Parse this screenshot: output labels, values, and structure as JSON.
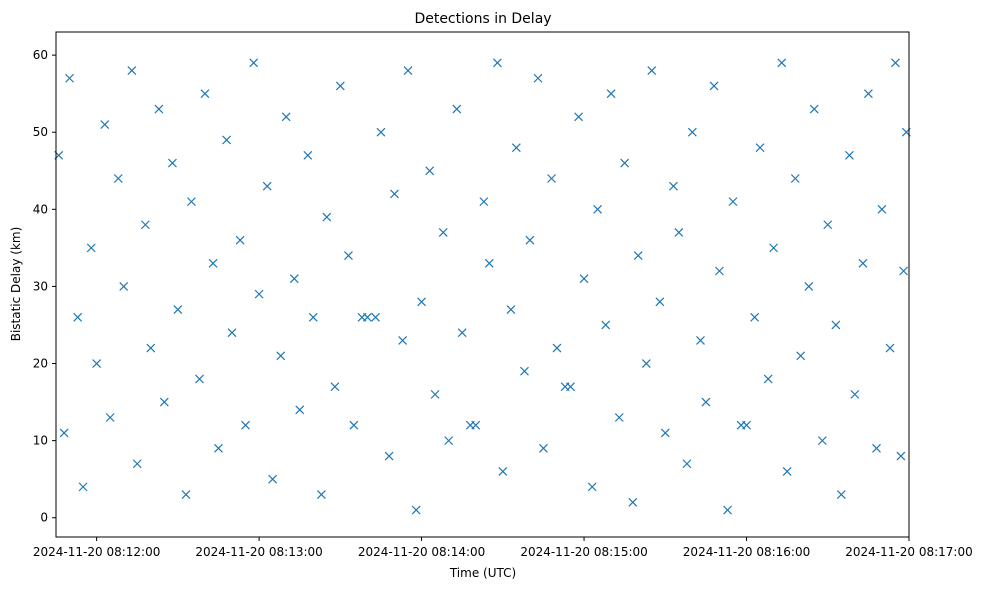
{
  "chart_data": {
    "type": "scatter",
    "title": "Detections in Delay",
    "xlabel": "Time (UTC)",
    "ylabel": "Bistatic Delay (km)",
    "marker": "x",
    "color": "#1f77b4",
    "grid": false,
    "legend": "none",
    "x_ticks": [
      "2024-11-20 08:12:00",
      "2024-11-20 08:13:00",
      "2024-11-20 08:14:00",
      "2024-11-20 08:15:00",
      "2024-11-20 08:16:00",
      "2024-11-20 08:17:00"
    ],
    "y_ticks": [
      0,
      10,
      20,
      30,
      40,
      50,
      60
    ],
    "xlim": [
      "2024-11-20 08:11:45",
      "2024-11-20 08:17:00"
    ],
    "ylim": [
      -2.5,
      63
    ],
    "points": [
      [
        "2024-11-20 08:11:46",
        47.0
      ],
      [
        "2024-11-20 08:11:48",
        11.0
      ],
      [
        "2024-11-20 08:11:50",
        57.0
      ],
      [
        "2024-11-20 08:11:53",
        26.0
      ],
      [
        "2024-11-20 08:11:55",
        4.0
      ],
      [
        "2024-11-20 08:11:58",
        35.0
      ],
      [
        "2024-11-20 08:12:00",
        20.0
      ],
      [
        "2024-11-20 08:12:03",
        51.0
      ],
      [
        "2024-11-20 08:12:05",
        13.0
      ],
      [
        "2024-11-20 08:12:08",
        44.0
      ],
      [
        "2024-11-20 08:12:10",
        30.0
      ],
      [
        "2024-11-20 08:12:13",
        58.0
      ],
      [
        "2024-11-20 08:12:15",
        7.0
      ],
      [
        "2024-11-20 08:12:18",
        38.0
      ],
      [
        "2024-11-20 08:12:20",
        22.0
      ],
      [
        "2024-11-20 08:12:23",
        53.0
      ],
      [
        "2024-11-20 08:12:25",
        15.0
      ],
      [
        "2024-11-20 08:12:28",
        46.0
      ],
      [
        "2024-11-20 08:12:30",
        27.0
      ],
      [
        "2024-11-20 08:12:33",
        3.0
      ],
      [
        "2024-11-20 08:12:35",
        41.0
      ],
      [
        "2024-11-20 08:12:38",
        18.0
      ],
      [
        "2024-11-20 08:12:40",
        55.0
      ],
      [
        "2024-11-20 08:12:43",
        33.0
      ],
      [
        "2024-11-20 08:12:45",
        9.0
      ],
      [
        "2024-11-20 08:12:48",
        49.0
      ],
      [
        "2024-11-20 08:12:50",
        24.0
      ],
      [
        "2024-11-20 08:12:53",
        36.0
      ],
      [
        "2024-11-20 08:12:55",
        12.0
      ],
      [
        "2024-11-20 08:12:58",
        59.0
      ],
      [
        "2024-11-20 08:13:00",
        29.0
      ],
      [
        "2024-11-20 08:13:03",
        43.0
      ],
      [
        "2024-11-20 08:13:05",
        5.0
      ],
      [
        "2024-11-20 08:13:08",
        21.0
      ],
      [
        "2024-11-20 08:13:10",
        52.0
      ],
      [
        "2024-11-20 08:13:13",
        31.0
      ],
      [
        "2024-11-20 08:13:15",
        14.0
      ],
      [
        "2024-11-20 08:13:18",
        47.0
      ],
      [
        "2024-11-20 08:13:20",
        26.0
      ],
      [
        "2024-11-20 08:13:23",
        3.0
      ],
      [
        "2024-11-20 08:13:25",
        39.0
      ],
      [
        "2024-11-20 08:13:28",
        17.0
      ],
      [
        "2024-11-20 08:13:30",
        56.0
      ],
      [
        "2024-11-20 08:13:33",
        34.0
      ],
      [
        "2024-11-20 08:13:35",
        12.0
      ],
      [
        "2024-11-20 08:13:38",
        26.0
      ],
      [
        "2024-11-20 08:13:40",
        26.0
      ],
      [
        "2024-11-20 08:13:43",
        26.0
      ],
      [
        "2024-11-20 08:13:45",
        50.0
      ],
      [
        "2024-11-20 08:13:48",
        8.0
      ],
      [
        "2024-11-20 08:13:50",
        42.0
      ],
      [
        "2024-11-20 08:13:53",
        23.0
      ],
      [
        "2024-11-20 08:13:55",
        58.0
      ],
      [
        "2024-11-20 08:13:58",
        1.0
      ],
      [
        "2024-11-20 08:14:00",
        28.0
      ],
      [
        "2024-11-20 08:14:03",
        45.0
      ],
      [
        "2024-11-20 08:14:05",
        16.0
      ],
      [
        "2024-11-20 08:14:08",
        37.0
      ],
      [
        "2024-11-20 08:14:10",
        10.0
      ],
      [
        "2024-11-20 08:14:13",
        53.0
      ],
      [
        "2024-11-20 08:14:15",
        24.0
      ],
      [
        "2024-11-20 08:14:18",
        12.0
      ],
      [
        "2024-11-20 08:14:20",
        12.0
      ],
      [
        "2024-11-20 08:14:23",
        41.0
      ],
      [
        "2024-11-20 08:14:25",
        33.0
      ],
      [
        "2024-11-20 08:14:28",
        59.0
      ],
      [
        "2024-11-20 08:14:30",
        6.0
      ],
      [
        "2024-11-20 08:14:33",
        27.0
      ],
      [
        "2024-11-20 08:14:35",
        48.0
      ],
      [
        "2024-11-20 08:14:38",
        19.0
      ],
      [
        "2024-11-20 08:14:40",
        36.0
      ],
      [
        "2024-11-20 08:14:43",
        57.0
      ],
      [
        "2024-11-20 08:14:45",
        9.0
      ],
      [
        "2024-11-20 08:14:48",
        44.0
      ],
      [
        "2024-11-20 08:14:50",
        22.0
      ],
      [
        "2024-11-20 08:14:53",
        17.0
      ],
      [
        "2024-11-20 08:14:55",
        17.0
      ],
      [
        "2024-11-20 08:14:58",
        52.0
      ],
      [
        "2024-11-20 08:15:00",
        31.0
      ],
      [
        "2024-11-20 08:15:03",
        4.0
      ],
      [
        "2024-11-20 08:15:05",
        40.0
      ],
      [
        "2024-11-20 08:15:08",
        25.0
      ],
      [
        "2024-11-20 08:15:10",
        55.0
      ],
      [
        "2024-11-20 08:15:13",
        13.0
      ],
      [
        "2024-11-20 08:15:15",
        46.0
      ],
      [
        "2024-11-20 08:15:18",
        2.0
      ],
      [
        "2024-11-20 08:15:20",
        34.0
      ],
      [
        "2024-11-20 08:15:23",
        20.0
      ],
      [
        "2024-11-20 08:15:25",
        58.0
      ],
      [
        "2024-11-20 08:15:28",
        28.0
      ],
      [
        "2024-11-20 08:15:30",
        11.0
      ],
      [
        "2024-11-20 08:15:33",
        43.0
      ],
      [
        "2024-11-20 08:15:35",
        37.0
      ],
      [
        "2024-11-20 08:15:38",
        7.0
      ],
      [
        "2024-11-20 08:15:40",
        50.0
      ],
      [
        "2024-11-20 08:15:43",
        23.0
      ],
      [
        "2024-11-20 08:15:45",
        15.0
      ],
      [
        "2024-11-20 08:15:48",
        56.0
      ],
      [
        "2024-11-20 08:15:50",
        32.0
      ],
      [
        "2024-11-20 08:15:53",
        1.0
      ],
      [
        "2024-11-20 08:15:55",
        41.0
      ],
      [
        "2024-11-20 08:15:58",
        12.0
      ],
      [
        "2024-11-20 08:16:00",
        12.0
      ],
      [
        "2024-11-20 08:16:03",
        26.0
      ],
      [
        "2024-11-20 08:16:05",
        48.0
      ],
      [
        "2024-11-20 08:16:08",
        18.0
      ],
      [
        "2024-11-20 08:16:10",
        35.0
      ],
      [
        "2024-11-20 08:16:13",
        59.0
      ],
      [
        "2024-11-20 08:16:15",
        6.0
      ],
      [
        "2024-11-20 08:16:18",
        44.0
      ],
      [
        "2024-11-20 08:16:20",
        21.0
      ],
      [
        "2024-11-20 08:16:23",
        30.0
      ],
      [
        "2024-11-20 08:16:25",
        53.0
      ],
      [
        "2024-11-20 08:16:28",
        10.0
      ],
      [
        "2024-11-20 08:16:30",
        38.0
      ],
      [
        "2024-11-20 08:16:33",
        25.0
      ],
      [
        "2024-11-20 08:16:35",
        3.0
      ],
      [
        "2024-11-20 08:16:38",
        47.0
      ],
      [
        "2024-11-20 08:16:40",
        16.0
      ],
      [
        "2024-11-20 08:16:43",
        33.0
      ],
      [
        "2024-11-20 08:16:45",
        55.0
      ],
      [
        "2024-11-20 08:16:48",
        9.0
      ],
      [
        "2024-11-20 08:16:50",
        40.0
      ],
      [
        "2024-11-20 08:16:53",
        22.0
      ],
      [
        "2024-11-20 08:16:55",
        59.0
      ],
      [
        "2024-11-20 08:16:57",
        8.0
      ],
      [
        "2024-11-20 08:16:58",
        32.0
      ],
      [
        "2024-11-20 08:16:59",
        50.0
      ]
    ]
  }
}
